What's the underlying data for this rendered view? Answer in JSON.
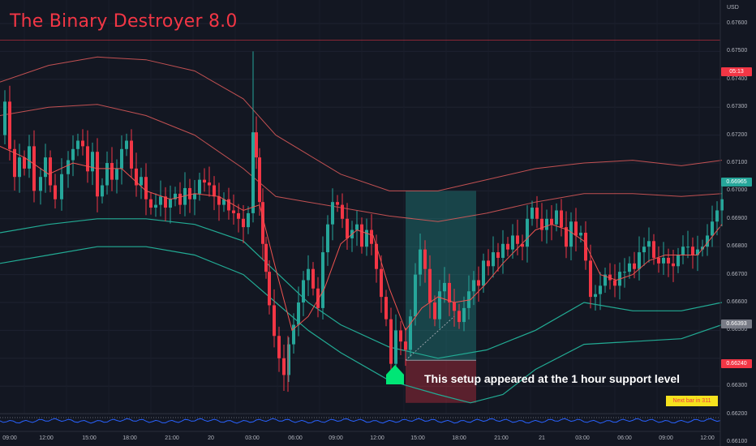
{
  "title": "The Binary Destroyer 8.0",
  "currency": "USD",
  "price_ticks": [
    "0.67600",
    "0.67500",
    "0.67400",
    "0.67300",
    "0.67200",
    "0.67100",
    "0.67000",
    "0.66900",
    "0.66800",
    "0.66700",
    "0.66600",
    "0.66500",
    "0.66300",
    "0.66200",
    "0.66100"
  ],
  "time_ticks": [
    "09:00",
    "12:00",
    "15:00",
    "18:00",
    "21:00",
    "20",
    "03:00",
    "06:00",
    "09:00",
    "12:00",
    "15:00",
    "18:00",
    "21:00",
    "21",
    "03:00",
    "06:00",
    "09:00",
    "12:00"
  ],
  "price_labels": {
    "countdown": "05:13",
    "current": "0.66965",
    "entry": "0.66393",
    "stop": "0.66240"
  },
  "annotation": "This setup appeared at the 1 hour support level",
  "next_bar": "Next bar in 311",
  "colors": {
    "background": "#131722",
    "bull": "#26a69a",
    "bear": "#f23645",
    "band_upper": "#e05a5a",
    "band_lower": "#22ab94",
    "ma": "#ef5350",
    "signal_arrow": "#00e676",
    "oscillator": "#2962ff"
  },
  "chart_data": {
    "type": "candlestick",
    "y_range": [
      0.6605,
      0.6765
    ],
    "close_path": [
      [
        0,
        0.672
      ],
      [
        6,
        0.6732
      ],
      [
        12,
        0.6715
      ],
      [
        18,
        0.6705
      ],
      [
        24,
        0.6712
      ],
      [
        30,
        0.6708
      ],
      [
        36,
        0.6716
      ],
      [
        42,
        0.67
      ],
      [
        50,
        0.6705
      ],
      [
        56,
        0.6712
      ],
      [
        62,
        0.6702
      ],
      [
        68,
        0.6697
      ],
      [
        76,
        0.6706
      ],
      [
        84,
        0.6711
      ],
      [
        90,
        0.6715
      ],
      [
        96,
        0.6718
      ],
      [
        102,
        0.6716
      ],
      [
        108,
        0.6707
      ],
      [
        114,
        0.6714
      ],
      [
        120,
        0.6698
      ],
      [
        126,
        0.6702
      ],
      [
        132,
        0.671
      ],
      [
        138,
        0.6704
      ],
      [
        144,
        0.6708
      ],
      [
        150,
        0.6715
      ],
      [
        156,
        0.6718
      ],
      [
        162,
        0.6708
      ],
      [
        168,
        0.6702
      ],
      [
        174,
        0.6705
      ],
      [
        180,
        0.6697
      ],
      [
        186,
        0.6694
      ],
      [
        192,
        0.6695
      ],
      [
        198,
        0.6698
      ],
      [
        204,
        0.6694
      ],
      [
        210,
        0.6697
      ],
      [
        216,
        0.6699
      ],
      [
        222,
        0.6695
      ],
      [
        228,
        0.6701
      ],
      [
        234,
        0.6697
      ],
      [
        240,
        0.6699
      ],
      [
        246,
        0.6704
      ],
      [
        252,
        0.6703
      ],
      [
        258,
        0.6702
      ],
      [
        264,
        0.6698
      ],
      [
        270,
        0.6695
      ],
      [
        276,
        0.6697
      ],
      [
        282,
        0.6693
      ],
      [
        288,
        0.6692
      ],
      [
        294,
        0.669
      ],
      [
        300,
        0.6687
      ],
      [
        306,
        0.6692
      ],
      [
        312,
        0.6721
      ],
      [
        316,
        0.6712
      ],
      [
        320,
        0.6696
      ],
      [
        324,
        0.6681
      ],
      [
        328,
        0.6671
      ],
      [
        332,
        0.6659
      ],
      [
        338,
        0.6648
      ],
      [
        344,
        0.664
      ],
      [
        350,
        0.6634
      ],
      [
        356,
        0.6645
      ],
      [
        362,
        0.6652
      ],
      [
        368,
        0.666
      ],
      [
        374,
        0.6668
      ],
      [
        380,
        0.6672
      ],
      [
        386,
        0.6665
      ],
      [
        392,
        0.6658
      ],
      [
        398,
        0.6678
      ],
      [
        404,
        0.6688
      ],
      [
        410,
        0.6696
      ],
      [
        416,
        0.6695
      ],
      [
        422,
        0.669
      ],
      [
        428,
        0.6683
      ],
      [
        434,
        0.6686
      ],
      [
        440,
        0.6688
      ],
      [
        446,
        0.668
      ],
      [
        452,
        0.6686
      ],
      [
        458,
        0.6681
      ],
      [
        464,
        0.6672
      ],
      [
        470,
        0.6662
      ],
      [
        476,
        0.6654
      ],
      [
        482,
        0.6638
      ],
      [
        488,
        0.665
      ],
      [
        494,
        0.6646
      ],
      [
        500,
        0.6643
      ],
      [
        506,
        0.6655
      ],
      [
        512,
        0.667
      ],
      [
        518,
        0.6679
      ],
      [
        524,
        0.6672
      ],
      [
        530,
        0.666
      ],
      [
        536,
        0.6654
      ],
      [
        542,
        0.6664
      ],
      [
        548,
        0.6667
      ],
      [
        554,
        0.666
      ],
      [
        560,
        0.6657
      ],
      [
        566,
        0.6653
      ],
      [
        572,
        0.6658
      ],
      [
        578,
        0.6664
      ],
      [
        584,
        0.6668
      ],
      [
        590,
        0.6666
      ],
      [
        596,
        0.6675
      ],
      [
        602,
        0.6673
      ],
      [
        608,
        0.6678
      ],
      [
        614,
        0.6676
      ],
      [
        620,
        0.6681
      ],
      [
        626,
        0.6679
      ],
      [
        632,
        0.6684
      ],
      [
        638,
        0.6681
      ],
      [
        644,
        0.668
      ],
      [
        650,
        0.669
      ],
      [
        656,
        0.6694
      ],
      [
        662,
        0.669
      ],
      [
        668,
        0.6686
      ],
      [
        674,
        0.669
      ],
      [
        680,
        0.6688
      ],
      [
        686,
        0.6693
      ],
      [
        692,
        0.6687
      ],
      [
        698,
        0.668
      ],
      [
        704,
        0.6689
      ],
      [
        710,
        0.6684
      ],
      [
        716,
        0.6685
      ],
      [
        722,
        0.6675
      ],
      [
        728,
        0.6662
      ],
      [
        734,
        0.6663
      ],
      [
        740,
        0.6666
      ],
      [
        746,
        0.667
      ],
      [
        752,
        0.6668
      ],
      [
        758,
        0.6666
      ],
      [
        764,
        0.6671
      ],
      [
        770,
        0.6671
      ],
      [
        776,
        0.6674
      ],
      [
        782,
        0.6672
      ],
      [
        788,
        0.6678
      ],
      [
        794,
        0.668
      ],
      [
        800,
        0.6682
      ],
      [
        806,
        0.6676
      ],
      [
        812,
        0.6674
      ],
      [
        818,
        0.6676
      ],
      [
        824,
        0.6674
      ],
      [
        830,
        0.6673
      ],
      [
        836,
        0.6677
      ],
      [
        842,
        0.668
      ],
      [
        848,
        0.668
      ],
      [
        854,
        0.6677
      ],
      [
        860,
        0.6679
      ],
      [
        866,
        0.668
      ],
      [
        872,
        0.6684
      ],
      [
        878,
        0.6689
      ],
      [
        884,
        0.6693
      ],
      [
        890,
        0.6697
      ]
    ],
    "band_upper_outer": [
      [
        0,
        0.6739
      ],
      [
        60,
        0.6745
      ],
      [
        120,
        0.6748
      ],
      [
        180,
        0.6747
      ],
      [
        240,
        0.6743
      ],
      [
        300,
        0.6733
      ],
      [
        340,
        0.672
      ],
      [
        380,
        0.6713
      ],
      [
        420,
        0.6706
      ],
      [
        480,
        0.67
      ],
      [
        540,
        0.67
      ],
      [
        600,
        0.6704
      ],
      [
        660,
        0.6708
      ],
      [
        720,
        0.671
      ],
      [
        780,
        0.6711
      ],
      [
        840,
        0.6709
      ],
      [
        890,
        0.6711
      ]
    ],
    "band_upper_inner": [
      [
        0,
        0.6727
      ],
      [
        60,
        0.673
      ],
      [
        120,
        0.6731
      ],
      [
        180,
        0.6727
      ],
      [
        240,
        0.672
      ],
      [
        300,
        0.6708
      ],
      [
        340,
        0.6698
      ],
      [
        380,
        0.6696
      ],
      [
        420,
        0.6694
      ],
      [
        480,
        0.6691
      ],
      [
        540,
        0.6689
      ],
      [
        600,
        0.6692
      ],
      [
        660,
        0.6696
      ],
      [
        720,
        0.6699
      ],
      [
        780,
        0.6699
      ],
      [
        840,
        0.6698
      ],
      [
        890,
        0.6699
      ]
    ],
    "band_lower_inner": [
      [
        0,
        0.6685
      ],
      [
        60,
        0.6688
      ],
      [
        120,
        0.669
      ],
      [
        180,
        0.669
      ],
      [
        240,
        0.6688
      ],
      [
        300,
        0.6682
      ],
      [
        340,
        0.6671
      ],
      [
        380,
        0.666
      ],
      [
        420,
        0.6652
      ],
      [
        480,
        0.6644
      ],
      [
        540,
        0.664
      ],
      [
        600,
        0.6643
      ],
      [
        660,
        0.665
      ],
      [
        720,
        0.666
      ],
      [
        780,
        0.6657
      ],
      [
        840,
        0.6657
      ],
      [
        890,
        0.666
      ]
    ],
    "band_lower_outer": [
      [
        0,
        0.6674
      ],
      [
        60,
        0.6677
      ],
      [
        120,
        0.668
      ],
      [
        180,
        0.668
      ],
      [
        240,
        0.6677
      ],
      [
        300,
        0.667
      ],
      [
        340,
        0.666
      ],
      [
        380,
        0.665
      ],
      [
        420,
        0.6642
      ],
      [
        480,
        0.6632
      ],
      [
        540,
        0.6627
      ],
      [
        580,
        0.6624
      ],
      [
        620,
        0.6627
      ],
      [
        660,
        0.6636
      ],
      [
        720,
        0.6645
      ],
      [
        780,
        0.6646
      ],
      [
        840,
        0.6647
      ],
      [
        890,
        0.6652
      ]
    ],
    "moving_average": [
      [
        0,
        0.6716
      ],
      [
        30,
        0.6712
      ],
      [
        60,
        0.6706
      ],
      [
        90,
        0.671
      ],
      [
        120,
        0.6708
      ],
      [
        150,
        0.6708
      ],
      [
        180,
        0.67
      ],
      [
        210,
        0.6697
      ],
      [
        240,
        0.6699
      ],
      [
        270,
        0.6698
      ],
      [
        300,
        0.6693
      ],
      [
        320,
        0.6695
      ],
      [
        340,
        0.6672
      ],
      [
        360,
        0.665
      ],
      [
        380,
        0.6655
      ],
      [
        400,
        0.6665
      ],
      [
        420,
        0.6681
      ],
      [
        440,
        0.6686
      ],
      [
        460,
        0.6684
      ],
      [
        480,
        0.6665
      ],
      [
        500,
        0.665
      ],
      [
        520,
        0.6658
      ],
      [
        540,
        0.6662
      ],
      [
        560,
        0.666
      ],
      [
        580,
        0.6661
      ],
      [
        600,
        0.6667
      ],
      [
        620,
        0.6674
      ],
      [
        640,
        0.668
      ],
      [
        660,
        0.6686
      ],
      [
        680,
        0.6688
      ],
      [
        700,
        0.6686
      ],
      [
        720,
        0.6682
      ],
      [
        740,
        0.667
      ],
      [
        760,
        0.6668
      ],
      [
        780,
        0.667
      ],
      [
        800,
        0.6675
      ],
      [
        820,
        0.6677
      ],
      [
        840,
        0.6677
      ],
      [
        860,
        0.6677
      ],
      [
        890,
        0.6688
      ]
    ],
    "trade_box": {
      "entry": 0.66393,
      "take_profit": 0.67,
      "stop_loss": 0.6624
    },
    "countdown_price": 0.6754
  }
}
